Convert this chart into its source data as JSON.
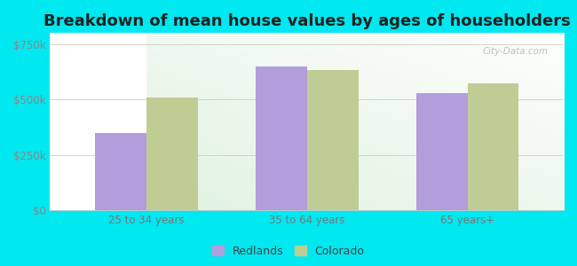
{
  "title": "Breakdown of mean house values by ages of householders",
  "categories": [
    "25 to 34 years",
    "35 to 64 years",
    "65 years+"
  ],
  "redlands_values": [
    350000,
    650000,
    530000
  ],
  "colorado_values": [
    510000,
    635000,
    575000
  ],
  "redlands_color": "#b39ddb",
  "colorado_color": "#bfcc94",
  "background_outer": "#00e8f0",
  "ylim": [
    0,
    800000
  ],
  "yticks": [
    0,
    250000,
    500000,
    750000
  ],
  "ytick_labels": [
    "$0",
    "$250k",
    "$500k",
    "$750k"
  ],
  "legend_labels": [
    "Redlands",
    "Colorado"
  ],
  "bar_width": 0.32,
  "title_fontsize": 13,
  "tick_fontsize": 8.5,
  "legend_fontsize": 9,
  "watermark": "City-Data.com"
}
